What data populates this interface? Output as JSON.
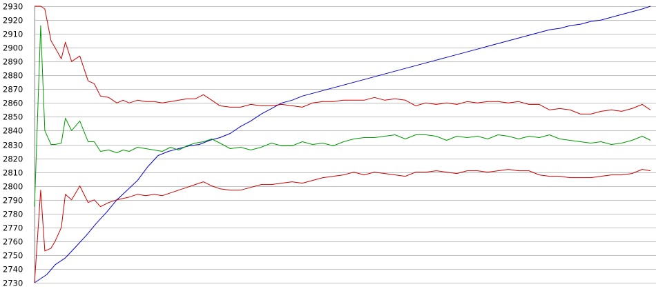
{
  "chart_data": {
    "type": "line",
    "title": "",
    "xlabel": "",
    "ylabel": "",
    "ylim": [
      2730,
      2930
    ],
    "yticks": [
      2930,
      2920,
      2910,
      2900,
      2890,
      2880,
      2870,
      2860,
      2850,
      2840,
      2830,
      2820,
      2810,
      2800,
      2790,
      2780,
      2770,
      2760,
      2750,
      2740,
      2730
    ],
    "grid": true,
    "legend": "none",
    "x": [
      0,
      1,
      2,
      3,
      4,
      5,
      6,
      7,
      8,
      9,
      10,
      11,
      12,
      13,
      14,
      15,
      16,
      17,
      18,
      19,
      20,
      21,
      22,
      23,
      24,
      25,
      26,
      27,
      28,
      29,
      30,
      31,
      32,
      33,
      34,
      35,
      36,
      37,
      38,
      39,
      40,
      41,
      42,
      43,
      44,
      45,
      46,
      47,
      48,
      49,
      50,
      51,
      52,
      53,
      54,
      55,
      56,
      57,
      58,
      59,
      60,
      61,
      62,
      63,
      64,
      65,
      66,
      67,
      68,
      69,
      70,
      71,
      72,
      73,
      74,
      75,
      76,
      77,
      78,
      79,
      80,
      81,
      82,
      83,
      84,
      85,
      86,
      87,
      88,
      89,
      90,
      91,
      92,
      93,
      94,
      95,
      96,
      97,
      98,
      99,
      100,
      101,
      102,
      103,
      104,
      105,
      106,
      107,
      108,
      109,
      110,
      111,
      112,
      113,
      114,
      115,
      116,
      117,
      118,
      119,
      120,
      121,
      122,
      123,
      124,
      125,
      126,
      127,
      128,
      129,
      130,
      131,
      132,
      133,
      134,
      135,
      136,
      137,
      138,
      139,
      140,
      141,
      142,
      143,
      144,
      145,
      146,
      147,
      148,
      149,
      150,
      151,
      152,
      153,
      154,
      155,
      156,
      157,
      158,
      159,
      160,
      161,
      162,
      163,
      164,
      165,
      166,
      167,
      168,
      169,
      170,
      171,
      172,
      173,
      174,
      175,
      176,
      177,
      178,
      179,
      180,
      181,
      182,
      183,
      184,
      185,
      186,
      187,
      188,
      189,
      190,
      191,
      192,
      193,
      194,
      195,
      196,
      197,
      198,
      199,
      200,
      201,
      202,
      203,
      204,
      205,
      206,
      207,
      208,
      209,
      210,
      211,
      212,
      213,
      214,
      215,
      216,
      217,
      218,
      219,
      220,
      221,
      222,
      223,
      224,
      225,
      226,
      227,
      228,
      229,
      230,
      231,
      232,
      233,
      234,
      235,
      236,
      237,
      238,
      239,
      240,
      241,
      242,
      243,
      244,
      245,
      246,
      247,
      248,
      249,
      250,
      251,
      252,
      253,
      254,
      255,
      256,
      257,
      258,
      259,
      260,
      261,
      262,
      263,
      264,
      265,
      266,
      267,
      268,
      269,
      270,
      271,
      272,
      273,
      274,
      275,
      276,
      277,
      278,
      279,
      280,
      281,
      282,
      283,
      284,
      285,
      286,
      287,
      288,
      289,
      290,
      291,
      292,
      293,
      294,
      295,
      296,
      297,
      298,
      299
    ],
    "xlim": [
      0,
      299
    ],
    "series": [
      {
        "color": "#0000cc",
        "x": [
          0,
          6,
          10,
          15,
          20,
          25,
          30,
          35,
          40,
          45,
          50,
          55,
          60,
          65,
          70,
          75,
          80,
          85,
          90,
          95,
          100,
          105,
          110,
          115,
          120,
          125,
          130,
          135,
          140,
          145,
          150,
          155,
          160,
          165,
          170,
          175,
          180,
          185,
          190,
          195,
          200,
          205,
          210,
          215,
          220,
          225,
          230,
          235,
          240,
          245,
          250,
          255,
          260,
          265,
          270,
          275,
          280,
          285,
          290,
          295,
          299
        ],
        "values": [
          2730,
          2736,
          2743,
          2748,
          2756,
          2764,
          2773,
          2781,
          2790,
          2797,
          2804,
          2814,
          2822,
          2825,
          2827,
          2829,
          2830,
          2833,
          2835,
          2838,
          2843,
          2847,
          2852,
          2856,
          2860,
          2862,
          2865,
          2867,
          2869,
          2871,
          2873,
          2875,
          2877,
          2879,
          2881,
          2883,
          2885,
          2887,
          2889,
          2891,
          2893,
          2895,
          2897,
          2899,
          2901,
          2903,
          2905,
          2907,
          2909,
          2911,
          2913,
          2914,
          2916,
          2917,
          2919,
          2920,
          2922,
          2924,
          2926,
          2928,
          2930
        ]
      },
      {
        "color": "#009900",
        "x": [
          0,
          3,
          5,
          8,
          10,
          13,
          15,
          18,
          22,
          26,
          29,
          32,
          36,
          40,
          43,
          46,
          50,
          54,
          58,
          62,
          66,
          70,
          74,
          78,
          82,
          86,
          90,
          95,
          100,
          105,
          110,
          115,
          120,
          125,
          130,
          135,
          140,
          145,
          150,
          155,
          160,
          165,
          170,
          175,
          180,
          185,
          190,
          195,
          200,
          205,
          210,
          215,
          220,
          225,
          230,
          235,
          240,
          245,
          250,
          255,
          260,
          265,
          270,
          275,
          280,
          285,
          290,
          295,
          299
        ],
        "values": [
          2785,
          2916,
          2840,
          2830,
          2830,
          2831,
          2849,
          2840,
          2847,
          2832,
          2832,
          2825,
          2826,
          2824,
          2826,
          2825,
          2828,
          2827,
          2826,
          2825,
          2828,
          2826,
          2829,
          2831,
          2832,
          2834,
          2831,
          2827,
          2828,
          2826,
          2828,
          2831,
          2829,
          2829,
          2832,
          2830,
          2831,
          2829,
          2832,
          2834,
          2835,
          2835,
          2836,
          2837,
          2834,
          2837,
          2837,
          2836,
          2833,
          2836,
          2835,
          2836,
          2834,
          2837,
          2836,
          2834,
          2836,
          2835,
          2837,
          2834,
          2833,
          2832,
          2831,
          2832,
          2830,
          2831,
          2833,
          2836,
          2833
        ]
      },
      {
        "color": "#cc0000",
        "x": [
          0,
          3,
          5,
          8,
          10,
          13,
          15,
          18,
          22,
          26,
          29,
          32,
          36,
          40,
          43,
          46,
          50,
          54,
          58,
          62,
          66,
          70,
          74,
          78,
          82,
          86,
          90,
          95,
          100,
          105,
          110,
          115,
          120,
          125,
          130,
          135,
          140,
          145,
          150,
          155,
          160,
          165,
          170,
          175,
          180,
          185,
          190,
          195,
          200,
          205,
          210,
          215,
          220,
          225,
          230,
          235,
          240,
          245,
          250,
          255,
          260,
          265,
          270,
          275,
          280,
          285,
          290,
          295,
          299
        ],
        "values": [
          2930,
          2930,
          2928,
          2905,
          2900,
          2892,
          2904,
          2890,
          2894,
          2876,
          2874,
          2865,
          2864,
          2860,
          2862,
          2860,
          2862,
          2861,
          2861,
          2860,
          2861,
          2862,
          2863,
          2863,
          2866,
          2862,
          2858,
          2857,
          2857,
          2859,
          2858,
          2858,
          2859,
          2858,
          2857,
          2860,
          2861,
          2861,
          2862,
          2862,
          2862,
          2864,
          2862,
          2863,
          2862,
          2858,
          2860,
          2859,
          2860,
          2859,
          2861,
          2860,
          2861,
          2861,
          2860,
          2861,
          2859,
          2859,
          2855,
          2856,
          2855,
          2852,
          2852,
          2854,
          2855,
          2854,
          2856,
          2859,
          2855
        ]
      },
      {
        "color": "#cc0000",
        "x": [
          0,
          3,
          5,
          8,
          10,
          13,
          15,
          18,
          22,
          26,
          29,
          32,
          36,
          40,
          43,
          46,
          50,
          54,
          58,
          62,
          66,
          70,
          74,
          78,
          82,
          86,
          90,
          95,
          100,
          105,
          110,
          115,
          120,
          125,
          130,
          135,
          140,
          145,
          150,
          155,
          160,
          165,
          170,
          175,
          180,
          185,
          190,
          195,
          200,
          205,
          210,
          215,
          220,
          225,
          230,
          235,
          240,
          245,
          250,
          255,
          260,
          265,
          270,
          275,
          280,
          285,
          290,
          295,
          299
        ],
        "values": [
          2730,
          2797,
          2753,
          2755,
          2760,
          2770,
          2794,
          2790,
          2800,
          2788,
          2790,
          2785,
          2788,
          2790,
          2791,
          2792,
          2794,
          2793,
          2794,
          2793,
          2795,
          2797,
          2799,
          2801,
          2803,
          2800,
          2798,
          2797,
          2797,
          2799,
          2801,
          2801,
          2802,
          2803,
          2802,
          2804,
          2806,
          2807,
          2808,
          2810,
          2808,
          2810,
          2809,
          2808,
          2807,
          2810,
          2810,
          2811,
          2810,
          2809,
          2811,
          2811,
          2810,
          2811,
          2812,
          2811,
          2811,
          2808,
          2807,
          2807,
          2806,
          2806,
          2806,
          2807,
          2808,
          2808,
          2809,
          2812,
          2811
        ]
      }
    ]
  }
}
